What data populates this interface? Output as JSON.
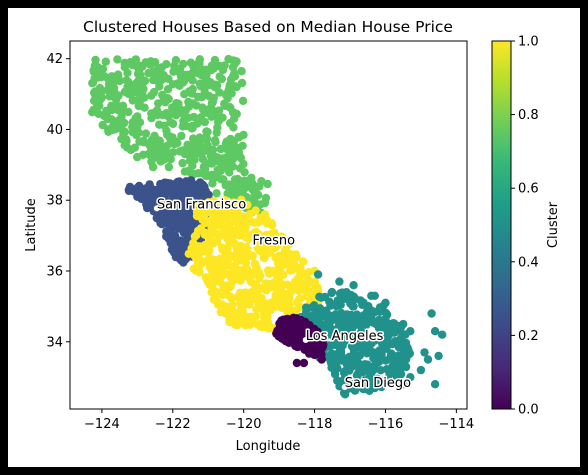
{
  "chart_data": {
    "type": "scatter",
    "title": "Clustered Houses Based on Median House Price",
    "xlabel": "Longitude",
    "ylabel": "Latitude",
    "xlim": [
      -124.9,
      -113.7
    ],
    "ylim": [
      32.1,
      42.5
    ],
    "xticks": [
      -124,
      -122,
      -120,
      -118,
      -116,
      -114
    ],
    "xtick_labels": [
      "−124",
      "−122",
      "−120",
      "−118",
      "−116",
      "−114"
    ],
    "yticks": [
      34,
      36,
      38,
      40,
      42
    ],
    "ytick_labels": [
      "34",
      "36",
      "38",
      "40",
      "42"
    ],
    "grid": false,
    "colorbar": {
      "label": "Cluster",
      "range": [
        0.0,
        1.0
      ],
      "ticks": [
        0.0,
        0.2,
        0.4,
        0.6,
        0.8,
        1.0
      ],
      "tick_labels": [
        "0.0",
        "0.2",
        "0.4",
        "0.6",
        "0.8",
        "1.0"
      ],
      "colormap": "viridis",
      "stops": [
        "#440154",
        "#482878",
        "#3e4989",
        "#31688e",
        "#26828e",
        "#1f9e89",
        "#35b779",
        "#6ece58",
        "#b5de2b",
        "#fde725"
      ]
    },
    "clusters": [
      {
        "value": 0.0,
        "color": "#440154"
      },
      {
        "value": 0.25,
        "color": "#3b528b"
      },
      {
        "value": 0.5,
        "color": "#21918c"
      },
      {
        "value": 0.75,
        "color": "#5ec962"
      },
      {
        "value": 1.0,
        "color": "#fde725"
      }
    ],
    "annotations": [
      {
        "text": "San Francisco",
        "x": -122.45,
        "y": 37.77
      },
      {
        "text": "Fresno",
        "x": -119.75,
        "y": 36.75
      },
      {
        "text": "Los Angeles",
        "x": -118.25,
        "y": 34.05
      },
      {
        "text": "San Diego",
        "x": -117.15,
        "y": 32.72
      }
    ]
  }
}
